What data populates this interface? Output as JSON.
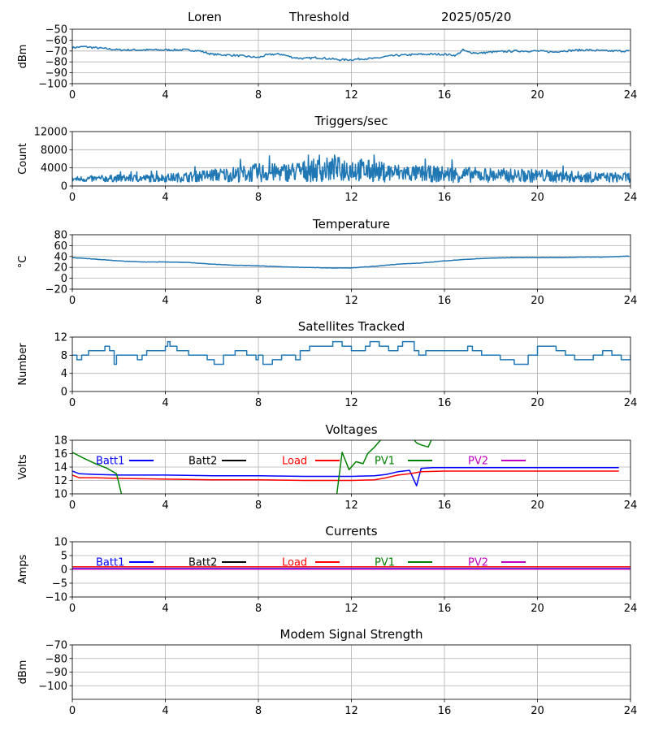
{
  "header": {
    "station": "Loren",
    "threshold_label": "Threshold",
    "date": "2025/05/20"
  },
  "chart_data": [
    {
      "type": "line",
      "title": "",
      "ylabel": "dBm",
      "xlim": [
        0,
        24
      ],
      "xticks": [
        0,
        4,
        8,
        12,
        16,
        20,
        24
      ],
      "ylim": [
        -100,
        -50
      ],
      "yticks": [
        -100,
        -90,
        -80,
        -70,
        -60,
        -50
      ],
      "grid": true,
      "series": [
        {
          "color": "#1f77b4",
          "x": [
            0,
            0.5,
            1,
            1.5,
            2,
            3,
            4,
            5,
            5.5,
            6,
            7,
            7.5,
            8,
            8.3,
            8.6,
            9,
            9.5,
            10,
            10.5,
            11,
            11.5,
            12,
            12.5,
            13,
            13.5,
            14,
            15,
            16,
            16.5,
            16.8,
            17,
            17.5,
            18,
            19,
            20,
            20.7,
            21,
            22,
            23,
            24
          ],
          "y": [
            -67,
            -66,
            -67,
            -68,
            -69,
            -69,
            -69,
            -69,
            -70,
            -73,
            -74,
            -75,
            -76,
            -74,
            -73,
            -73,
            -76,
            -77,
            -76,
            -77,
            -78,
            -78,
            -77,
            -77,
            -75,
            -74,
            -73,
            -73,
            -74,
            -69,
            -71,
            -72,
            -71,
            -70,
            -70,
            -71,
            -70,
            -69,
            -70,
            -70
          ]
        }
      ]
    },
    {
      "type": "line",
      "title": "Triggers/sec",
      "ylabel": "Count",
      "xlim": [
        0,
        24
      ],
      "xticks": [
        0,
        4,
        8,
        12,
        16,
        20,
        24
      ],
      "ylim": [
        0,
        12000
      ],
      "yticks": [
        0,
        4000,
        8000,
        12000
      ],
      "grid": true,
      "series": [
        {
          "color": "#1f77b4",
          "x": [
            0,
            1,
            2,
            3,
            4,
            5,
            6,
            7,
            8,
            9,
            10,
            11,
            12,
            13,
            14,
            15,
            16,
            17,
            18,
            19,
            20,
            21,
            22,
            23,
            24
          ],
          "y": [
            1500,
            1600,
            1700,
            1700,
            1800,
            2000,
            2400,
            2600,
            2900,
            3000,
            3300,
            3600,
            3800,
            3200,
            2900,
            2700,
            2600,
            2500,
            2400,
            2300,
            2300,
            2100,
            2000,
            1900,
            1900
          ],
          "noise_amplitude": [
            600,
            700,
            800,
            800,
            900,
            1100,
            1400,
            1700,
            2100,
            2000,
            2400,
            2700,
            2800,
            2300,
            2000,
            1800,
            1800,
            1700,
            1600,
            1500,
            1500,
            1300,
            1200,
            1100,
            1100
          ],
          "peak": 6800
        }
      ]
    },
    {
      "type": "line",
      "title": "Temperature",
      "ylabel": "°C",
      "xlim": [
        0,
        24
      ],
      "xticks": [
        0,
        4,
        8,
        12,
        16,
        20,
        24
      ],
      "ylim": [
        -20,
        80
      ],
      "yticks": [
        -20,
        0,
        20,
        40,
        60,
        80
      ],
      "grid": true,
      "series": [
        {
          "color": "#1f77b4",
          "x": [
            0,
            1,
            2,
            3,
            4,
            5,
            6,
            7,
            8,
            9,
            10,
            11,
            12,
            13,
            14,
            15,
            16,
            17,
            18,
            19,
            20,
            21,
            22,
            23,
            24
          ],
          "y": [
            38,
            35,
            32,
            30,
            30,
            29,
            26,
            24,
            23,
            21,
            20,
            19,
            19,
            22,
            26,
            28,
            32,
            35,
            37,
            38,
            38,
            38,
            39,
            39,
            41
          ]
        }
      ]
    },
    {
      "type": "line",
      "title": "Satellites Tracked",
      "ylabel": "Number",
      "xlim": [
        0,
        24
      ],
      "xticks": [
        0,
        4,
        8,
        12,
        16,
        20,
        24
      ],
      "ylim": [
        0,
        12
      ],
      "yticks": [
        0,
        4,
        8,
        12
      ],
      "grid": true,
      "series": [
        {
          "color": "#1f77b4",
          "step": true,
          "x": [
            0,
            0.2,
            0.4,
            0.7,
            1.4,
            1.6,
            1.8,
            1.9,
            2.0,
            2.8,
            3.0,
            3.2,
            4.0,
            4.1,
            4.2,
            4.5,
            5.0,
            5.4,
            5.8,
            6.1,
            6.5,
            6.8,
            7.0,
            7.5,
            7.9,
            8.0,
            8.2,
            8.6,
            9.0,
            9.6,
            9.8,
            10.2,
            10.8,
            11.2,
            11.6,
            11.9,
            12.0,
            12.6,
            12.8,
            13.2,
            13.6,
            14.0,
            14.2,
            14.7,
            14.9,
            15.2,
            15.6,
            16.0,
            16.5,
            17.0,
            17.2,
            17.6,
            18.0,
            18.4,
            18.8,
            19.0,
            19.6,
            20.0,
            20.8,
            21.2,
            21.6,
            22.0,
            22.4,
            22.8,
            23.2,
            23.6,
            24.0
          ],
          "y": [
            8,
            7,
            8,
            9,
            10,
            9,
            6,
            8,
            8,
            7,
            8,
            9,
            10,
            11,
            10,
            9,
            8,
            8,
            7,
            6,
            8,
            8,
            9,
            8,
            7,
            8,
            6,
            7,
            8,
            7,
            9,
            10,
            10,
            11,
            10,
            10,
            9,
            10,
            11,
            10,
            9,
            10,
            11,
            9,
            8,
            9,
            9,
            9,
            9,
            10,
            9,
            8,
            8,
            7,
            7,
            6,
            8,
            10,
            9,
            8,
            7,
            7,
            8,
            9,
            8,
            7,
            8
          ]
        }
      ]
    },
    {
      "type": "line",
      "title": "Voltages",
      "ylabel": "Volts",
      "xlim": [
        0,
        24
      ],
      "xticks": [
        0,
        4,
        8,
        12,
        16,
        20,
        24
      ],
      "ylim": [
        10,
        18
      ],
      "yticks": [
        10,
        12,
        14,
        16,
        18
      ],
      "grid": true,
      "legend": "top, single row",
      "series": [
        {
          "name": "Batt1",
          "color": "#0000ff",
          "x": [
            0,
            0.3,
            1,
            2,
            4,
            6,
            8,
            10,
            11,
            12,
            13,
            13.5,
            14,
            14.5,
            14.8,
            15,
            15.5,
            16,
            18,
            20,
            22,
            23.5
          ],
          "y": [
            13.4,
            13.0,
            12.9,
            12.8,
            12.8,
            12.7,
            12.7,
            12.6,
            12.6,
            12.6,
            12.7,
            12.9,
            13.3,
            13.5,
            11.2,
            13.8,
            13.9,
            13.9,
            13.9,
            13.9,
            13.9,
            13.9
          ]
        },
        {
          "name": "Batt2",
          "color": "#000000",
          "x": [],
          "y": []
        },
        {
          "name": "Load",
          "color": "#ff0000",
          "x": [
            0,
            0.3,
            1,
            2,
            4,
            6,
            8,
            10,
            12,
            13,
            13.5,
            14,
            14.5,
            15,
            16,
            18,
            20,
            22,
            23.5
          ],
          "y": [
            12.8,
            12.4,
            12.4,
            12.3,
            12.2,
            12.1,
            12.1,
            12.0,
            12.0,
            12.1,
            12.4,
            12.8,
            13.0,
            13.3,
            13.4,
            13.4,
            13.4,
            13.4,
            13.4
          ]
        },
        {
          "name": "PV1",
          "color": "#008000",
          "x": [
            0,
            0.5,
            1,
            1.5,
            1.9,
            2.1,
            2.3,
            11.3,
            11.6,
            11.9,
            12.2,
            12.5,
            12.7,
            13.0,
            13.4,
            13.8,
            14.3,
            14.8,
            15.0,
            15.3,
            15.5
          ],
          "y": [
            16.2,
            15.3,
            14.5,
            13.8,
            13.0,
            10.2,
            8.0,
            8.0,
            16.2,
            13.6,
            14.8,
            14.5,
            16.0,
            17.0,
            18.6,
            19.5,
            19.8,
            17.6,
            17.3,
            17.0,
            18.5
          ]
        },
        {
          "name": "PV2",
          "color": "#bf00bf",
          "x": [],
          "y": []
        }
      ]
    },
    {
      "type": "line",
      "title": "Currents",
      "ylabel": "Amps",
      "xlim": [
        0,
        24
      ],
      "xticks": [
        0,
        4,
        8,
        12,
        16,
        20,
        24
      ],
      "ylim": [
        -10,
        10
      ],
      "yticks": [
        -10,
        -5,
        0,
        5,
        10
      ],
      "grid": true,
      "legend": "top, single row",
      "series": [
        {
          "name": "Batt1",
          "color": "#0000ff",
          "x": [
            0,
            24
          ],
          "y": [
            0.3,
            0.3
          ]
        },
        {
          "name": "Batt2",
          "color": "#000000",
          "x": [],
          "y": []
        },
        {
          "name": "Load",
          "color": "#ff0000",
          "x": [
            0,
            24
          ],
          "y": [
            0.9,
            0.9
          ]
        },
        {
          "name": "PV1",
          "color": "#008000",
          "x": [],
          "y": []
        },
        {
          "name": "PV2",
          "color": "#bf00bf",
          "x": [
            0,
            24
          ],
          "y": [
            0.1,
            0.1
          ]
        }
      ]
    },
    {
      "type": "line",
      "title": "Modem Signal Strength",
      "ylabel": "dBm",
      "xlim": [
        0,
        24
      ],
      "xticks": [
        0,
        4,
        8,
        12,
        16,
        20,
        24
      ],
      "ylim": [
        -110,
        -70
      ],
      "yticks": [
        -100,
        -90,
        -80,
        -70
      ],
      "grid": true,
      "series": []
    }
  ]
}
